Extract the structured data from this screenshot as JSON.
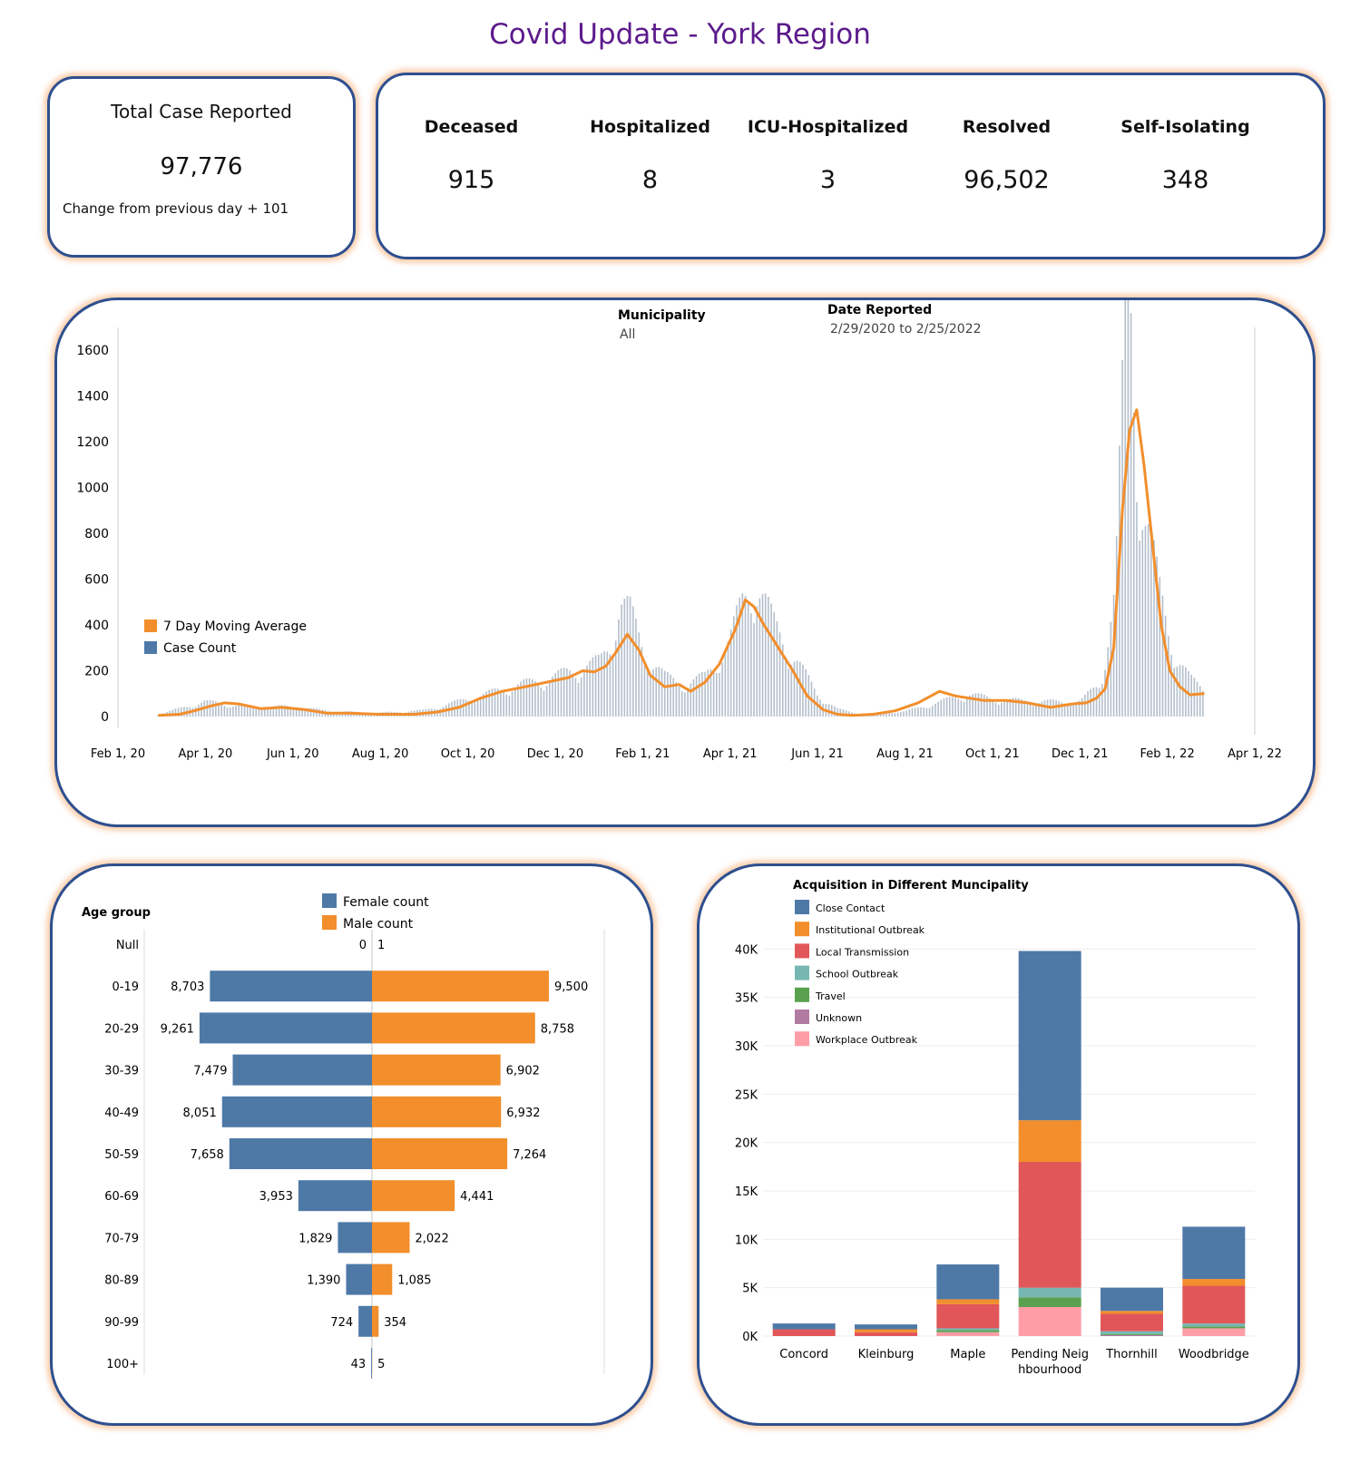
{
  "header": {
    "title": "Covid Update -  York Region"
  },
  "summary": {
    "total_label": "Total Case Reported",
    "total_value": "97,776",
    "change_text": "Change from previous day  + 101"
  },
  "stats": [
    {
      "label": "Deceased",
      "value": "915"
    },
    {
      "label": "Hospitalized",
      "value": "8"
    },
    {
      "label": "ICU-Hospitalized",
      "value": "3"
    },
    {
      "label": "Resolved",
      "value": "96,502"
    },
    {
      "label": "Self-Isolating",
      "value": "348"
    }
  ],
  "filters": {
    "municipality_label": "Municipality",
    "municipality_value": "All",
    "date_label": "Date Reported",
    "date_value": "2/29/2020 to 2/25/2022"
  },
  "colors": {
    "female": "#4e79a7",
    "male": "#f28e2b",
    "daily_bar": "#b4bfcc",
    "moving_avg": "#f28e2b",
    "border": "#2e4f8f",
    "title": "#5c1a8c"
  },
  "chart_data": [
    {
      "type": "line",
      "legend": [
        "7 Day Moving Average",
        "Case Count"
      ],
      "legend_position": "left",
      "xlim": [
        "2020-02-01",
        "2022-04-01"
      ],
      "ylim": [
        0,
        1700
      ],
      "x_ticks": [
        "Feb 1, 20",
        "Apr 1, 20",
        "Jun 1, 20",
        "Aug 1, 20",
        "Oct 1, 20",
        "Dec 1, 20",
        "Feb 1, 21",
        "Apr 1, 21",
        "Jun 1, 21",
        "Aug 1, 21",
        "Oct 1, 21",
        "Dec 1, 21",
        "Feb 1, 22",
        "Apr 1, 22"
      ],
      "y_ticks": [
        0,
        200,
        400,
        600,
        800,
        1000,
        1200,
        1400,
        1600
      ],
      "moving_average": {
        "name": "7 Day Moving Average",
        "x": [
          "2020-02-29",
          "2020-03-15",
          "2020-03-25",
          "2020-04-05",
          "2020-04-15",
          "2020-04-25",
          "2020-05-10",
          "2020-05-25",
          "2020-06-10",
          "2020-06-25",
          "2020-07-10",
          "2020-08-01",
          "2020-08-25",
          "2020-09-10",
          "2020-09-25",
          "2020-10-10",
          "2020-10-25",
          "2020-11-10",
          "2020-11-25",
          "2020-12-10",
          "2020-12-20",
          "2020-12-28",
          "2021-01-05",
          "2021-01-12",
          "2021-01-20",
          "2021-01-28",
          "2021-02-05",
          "2021-02-15",
          "2021-02-25",
          "2021-03-05",
          "2021-03-15",
          "2021-03-25",
          "2021-04-05",
          "2021-04-12",
          "2021-04-18",
          "2021-04-25",
          "2021-05-05",
          "2021-05-15",
          "2021-05-25",
          "2021-06-05",
          "2021-06-15",
          "2021-06-25",
          "2021-07-10",
          "2021-07-25",
          "2021-08-10",
          "2021-08-25",
          "2021-09-05",
          "2021-09-15",
          "2021-09-25",
          "2021-10-10",
          "2021-10-25",
          "2021-11-10",
          "2021-11-25",
          "2021-12-05",
          "2021-12-12",
          "2021-12-18",
          "2021-12-24",
          "2021-12-30",
          "2022-01-04",
          "2022-01-09",
          "2022-01-14",
          "2022-01-20",
          "2022-01-26",
          "2022-02-01",
          "2022-02-08",
          "2022-02-15",
          "2022-02-25"
        ],
        "y": [
          5,
          10,
          25,
          45,
          60,
          55,
          35,
          40,
          30,
          15,
          15,
          10,
          10,
          20,
          40,
          80,
          110,
          130,
          150,
          170,
          200,
          195,
          220,
          280,
          360,
          290,
          180,
          130,
          140,
          110,
          150,
          230,
          380,
          510,
          480,
          400,
          300,
          200,
          90,
          30,
          10,
          5,
          10,
          25,
          60,
          110,
          90,
          80,
          70,
          70,
          60,
          40,
          55,
          60,
          80,
          120,
          300,
          900,
          1250,
          1340,
          1100,
          750,
          400,
          200,
          130,
          95,
          100
        ]
      },
      "case_count": {
        "name": "Case Count",
        "x": [
          "2020-03-01",
          "2020-04-01",
          "2020-05-01",
          "2020-06-01",
          "2020-07-01",
          "2020-08-01",
          "2020-09-01",
          "2020-10-01",
          "2020-11-01",
          "2020-12-01",
          "2020-12-15",
          "2021-01-01",
          "2021-01-08",
          "2021-01-15",
          "2021-01-22",
          "2021-02-01",
          "2021-02-15",
          "2021-03-01",
          "2021-03-15",
          "2021-04-01",
          "2021-04-10",
          "2021-04-15",
          "2021-04-20",
          "2021-05-01",
          "2021-05-15",
          "2021-06-01",
          "2021-06-15",
          "2021-07-01",
          "2021-08-01",
          "2021-09-01",
          "2021-09-15",
          "2021-10-01",
          "2021-11-01",
          "2021-12-01",
          "2021-12-15",
          "2021-12-25",
          "2022-01-01",
          "2022-01-05",
          "2022-01-10",
          "2022-01-15",
          "2022-01-25",
          "2022-02-05",
          "2022-02-15",
          "2022-02-25"
        ],
        "y": [
          10,
          60,
          40,
          40,
          20,
          15,
          25,
          70,
          120,
          160,
          190,
          220,
          300,
          460,
          420,
          260,
          160,
          130,
          160,
          300,
          460,
          520,
          540,
          380,
          250,
          90,
          30,
          10,
          20,
          70,
          90,
          70,
          60,
          60,
          140,
          500,
          1550,
          1660,
          1000,
          800,
          500,
          250,
          150,
          110
        ]
      }
    },
    {
      "type": "bar",
      "orientation": "horizontal",
      "ylabel": "Age group",
      "categories": [
        "Null",
        "0-19",
        "20-29",
        "30-39",
        "40-49",
        "50-59",
        "60-69",
        "70-79",
        "80-89",
        "90-99",
        "100+"
      ],
      "series": [
        {
          "name": "Female count",
          "values": [
            0,
            8703,
            9261,
            7479,
            8051,
            7658,
            3953,
            1829,
            1390,
            724,
            43
          ],
          "labels": [
            "0",
            "8,703",
            "9,261",
            "7,479",
            "8,051",
            "7,658",
            "3,953",
            "1,829",
            "1,390",
            "724",
            "43"
          ]
        },
        {
          "name": "Male count",
          "values": [
            1,
            9500,
            8758,
            6902,
            6932,
            7264,
            4441,
            2022,
            1085,
            354,
            5
          ],
          "labels": [
            "1",
            "9,500",
            "8,758",
            "6,902",
            "6,932",
            "7,264",
            "4,441",
            "2,022",
            "1,085",
            "354",
            "5"
          ]
        }
      ]
    },
    {
      "type": "bar",
      "stacked": true,
      "title": "Acquisition in Different Muncipality",
      "categories": [
        "Concord",
        "Kleinburg",
        "Maple",
        "Pending Neighbourhood",
        "Thornhill",
        "Woodbridge"
      ],
      "category_lines": [
        [
          "Concord"
        ],
        [
          "Kleinburg"
        ],
        [
          "Maple"
        ],
        [
          "Pending Neig",
          "hbourhood"
        ],
        [
          "Thornhill"
        ],
        [
          "Woodbridge"
        ]
      ],
      "ylim": [
        0,
        42000
      ],
      "y_ticks": [
        0,
        5000,
        10000,
        15000,
        20000,
        25000,
        30000,
        35000,
        40000
      ],
      "y_tick_labels": [
        "0K",
        "5K",
        "10K",
        "15K",
        "20K",
        "25K",
        "30K",
        "35K",
        "40K"
      ],
      "legend_position": "top-left",
      "series": [
        {
          "name": "Workplace Outbreak",
          "color": "#ff9da7",
          "values": [
            0,
            0,
            400,
            3000,
            0,
            800
          ]
        },
        {
          "name": "Unknown",
          "color": "#b07aa1",
          "values": [
            0,
            0,
            0,
            0,
            100,
            0
          ]
        },
        {
          "name": "Travel",
          "color": "#59a14f",
          "values": [
            0,
            0,
            200,
            1000,
            100,
            200
          ]
        },
        {
          "name": "School Outbreak",
          "color": "#76b7b2",
          "values": [
            0,
            0,
            200,
            1000,
            300,
            300
          ]
        },
        {
          "name": "Local Transmission",
          "color": "#e15759",
          "values": [
            700,
            400,
            2500,
            13000,
            1800,
            3900
          ]
        },
        {
          "name": "Institutional Outbreak",
          "color": "#f28e2b",
          "values": [
            0,
            300,
            500,
            4300,
            300,
            700
          ]
        },
        {
          "name": "Close Contact",
          "color": "#4e79a7",
          "values": [
            600,
            500,
            3600,
            17500,
            2400,
            5400
          ]
        }
      ]
    }
  ]
}
